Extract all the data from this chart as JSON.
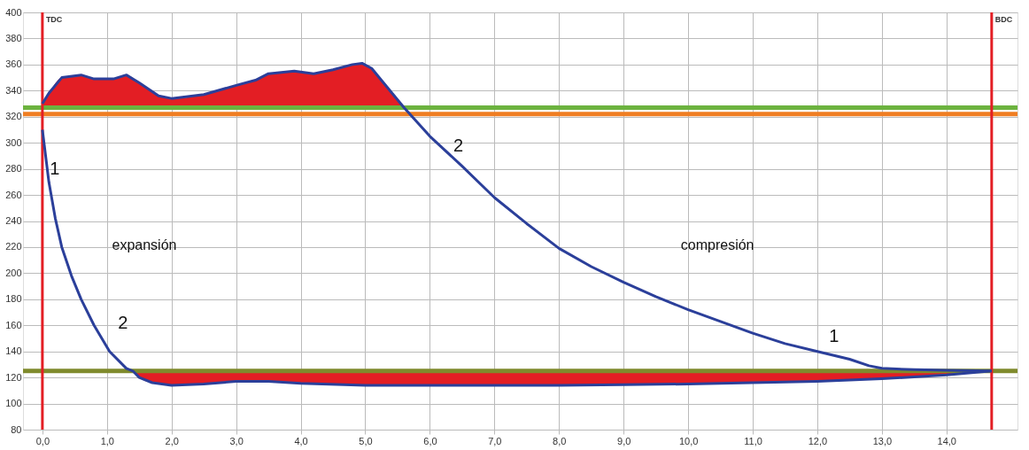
{
  "chart_data": {
    "type": "line",
    "xlim": [
      -0.3,
      15.1
    ],
    "ylim": [
      80,
      400
    ],
    "xticks": [
      {
        "value": 0,
        "label": "0,0"
      },
      {
        "value": 1,
        "label": "1,0"
      },
      {
        "value": 2,
        "label": "2,0"
      },
      {
        "value": 3,
        "label": "3,0"
      },
      {
        "value": 4,
        "label": "4,0"
      },
      {
        "value": 5,
        "label": "5,0"
      },
      {
        "value": 6,
        "label": "6,0"
      },
      {
        "value": 7,
        "label": "7,0"
      },
      {
        "value": 8,
        "label": "8,0"
      },
      {
        "value": 9,
        "label": "9,0"
      },
      {
        "value": 10,
        "label": "10,0"
      },
      {
        "value": 11,
        "label": "11,0"
      },
      {
        "value": 12,
        "label": "12,0"
      },
      {
        "value": 13,
        "label": "13,0"
      },
      {
        "value": 14,
        "label": "14,0"
      }
    ],
    "yticks": [
      80,
      100,
      120,
      140,
      160,
      180,
      200,
      220,
      240,
      260,
      280,
      300,
      320,
      340,
      360,
      380,
      400
    ],
    "grid": true,
    "marker": "none",
    "line_style": "solid",
    "series": [
      {
        "color": "#2b3f9a",
        "x": [
          0,
          0.1,
          0.3,
          0.6,
          0.8,
          1.1,
          1.3,
          1.5,
          1.8,
          2.0,
          2.5,
          3.0,
          3.3,
          3.5,
          3.9,
          4.2,
          4.5,
          4.8,
          4.95,
          5.1,
          5.3,
          5.6,
          6.0,
          6.5,
          7.0,
          7.5,
          8.0,
          8.5,
          9.0,
          9.5,
          10.0,
          10.5,
          11.0,
          11.5,
          12.0,
          12.5,
          12.8,
          13.0,
          13.5,
          14.0,
          14.7
        ],
        "values": [
          330,
          338,
          350,
          352,
          349,
          349,
          352,
          346,
          336,
          334,
          337,
          344,
          348,
          353,
          355,
          353,
          356,
          360,
          361,
          357,
          345,
          327,
          305,
          282,
          258,
          238,
          219,
          205,
          193,
          182,
          172,
          163,
          154,
          146,
          140,
          134,
          129,
          127,
          126,
          125.5,
          125
        ],
        "lower": [
          327,
          327,
          327,
          327,
          327,
          327,
          327,
          327,
          327,
          327,
          327,
          327,
          327,
          327,
          327,
          327,
          327,
          327,
          327,
          327,
          327,
          327,
          null,
          null,
          null,
          null,
          null,
          null,
          null,
          null,
          null,
          null,
          null,
          null,
          null,
          null,
          null,
          null,
          null,
          null,
          null
        ],
        "upper": [
          330,
          338,
          350,
          352,
          349,
          349,
          352,
          346,
          336,
          334,
          337,
          344,
          348,
          353,
          355,
          353,
          356,
          360,
          361,
          357,
          345,
          327,
          null,
          null,
          null,
          null,
          null,
          null,
          null,
          null,
          null,
          null,
          null,
          null,
          null,
          null,
          null,
          null,
          null,
          null,
          null
        ]
      },
      {
        "color": "#2b3f9a",
        "x": [
          0,
          0.05,
          0.1,
          0.2,
          0.3,
          0.45,
          0.6,
          0.8,
          1.04,
          1.3,
          1.4,
          1.5,
          1.7,
          2.0,
          2.5,
          3.0,
          3.5,
          4.0,
          5.0,
          6.0,
          7.0,
          8.0,
          9.0,
          10.0,
          11.0,
          12.0,
          13.0,
          14.0,
          14.7
        ],
        "values": [
          310,
          290,
          270,
          242,
          220,
          198,
          180,
          160,
          140,
          127,
          125,
          120,
          116,
          114,
          115,
          117,
          117,
          115.5,
          114,
          114,
          114,
          114,
          114.5,
          115,
          116,
          117,
          119,
          122,
          125
        ],
        "lower": [
          null,
          null,
          null,
          null,
          null,
          null,
          null,
          null,
          null,
          null,
          125,
          120,
          116,
          114,
          115,
          117,
          117,
          115.5,
          114,
          114,
          114,
          114,
          114.5,
          115,
          116,
          117,
          119,
          122,
          125
        ],
        "upper": [
          null,
          null,
          null,
          null,
          null,
          null,
          null,
          null,
          null,
          null,
          125,
          125,
          125,
          125,
          125,
          125,
          125,
          125,
          125,
          125,
          125,
          125,
          125,
          125,
          125,
          125,
          125,
          125,
          125
        ]
      }
    ],
    "ref_lines": [
      {
        "axis": "y",
        "value": 327,
        "color": "#6cb33f"
      },
      {
        "axis": "y",
        "value": 322,
        "color": "#ef7d22"
      },
      {
        "axis": "y",
        "value": 125,
        "color": "#7f8a2c"
      },
      {
        "axis": "x",
        "value": 0,
        "label": "TDC",
        "color": "#e31e24"
      },
      {
        "axis": "x",
        "value": 14.7,
        "label": "BDC",
        "color": "#e31e24"
      }
    ],
    "annotations": [
      "expansión",
      "compresión",
      "1",
      "2",
      "2",
      "1"
    ]
  }
}
